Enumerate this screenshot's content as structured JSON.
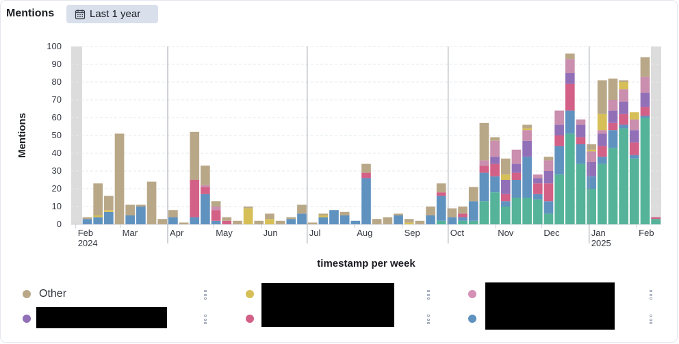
{
  "header": {
    "title": "Mentions",
    "date_range_label": "Last 1 year"
  },
  "legend": {
    "items": [
      {
        "label": "Other",
        "color": "#b9a888"
      },
      {
        "label": "",
        "color": "#d6bf57"
      },
      {
        "label": "",
        "color": "#d590b5"
      },
      {
        "label": "",
        "color": "#9170b8"
      },
      {
        "label": "",
        "color": "#d36086"
      },
      {
        "label": "",
        "color": "#6092c0"
      }
    ]
  },
  "chart_data": {
    "type": "bar",
    "stacked": true,
    "xlabel": "timestamp per week",
    "ylabel": "Mentions",
    "ylim": [
      0,
      100
    ],
    "yticks": [
      0,
      10,
      20,
      30,
      40,
      50,
      60,
      70,
      80,
      90,
      100
    ],
    "grid": true,
    "legend_position": "bottom",
    "x_tick_labels": [
      {
        "label": "Feb",
        "sublabel": "2024"
      },
      {
        "label": "Mar",
        "sublabel": ""
      },
      {
        "label": "Apr",
        "sublabel": ""
      },
      {
        "label": "May",
        "sublabel": ""
      },
      {
        "label": "Jun",
        "sublabel": ""
      },
      {
        "label": "Jul",
        "sublabel": ""
      },
      {
        "label": "Aug",
        "sublabel": ""
      },
      {
        "label": "Sep",
        "sublabel": ""
      },
      {
        "label": "Oct",
        "sublabel": ""
      },
      {
        "label": "Nov",
        "sublabel": ""
      },
      {
        "label": "Dec",
        "sublabel": ""
      },
      {
        "label": "Jan",
        "sublabel": "2025"
      },
      {
        "label": "Feb",
        "sublabel": ""
      }
    ],
    "series_order": [
      "teal",
      "blue",
      "pink",
      "purple",
      "lightpink",
      "yellow",
      "Other"
    ],
    "colors": {
      "teal": "#54b399",
      "blue": "#6092c0",
      "pink": "#d36086",
      "purple": "#9170b8",
      "lightpink": "#ca8eae",
      "yellow": "#d6bf57",
      "Other": "#b9a888"
    },
    "weeks": [
      {
        "week": "2024-02-05",
        "blue": 3,
        "Other": 1
      },
      {
        "week": "2024-02-12",
        "blue": 4,
        "yellow": 1,
        "Other": 18
      },
      {
        "week": "2024-02-19",
        "blue": 7,
        "yellow": 1,
        "Other": 8
      },
      {
        "week": "2024-02-26",
        "Other": 51
      },
      {
        "week": "2024-03-04",
        "blue": 5,
        "Other": 6
      },
      {
        "week": "2024-03-11",
        "blue": 10,
        "Other": 1
      },
      {
        "week": "2024-03-18",
        "Other": 24
      },
      {
        "week": "2024-03-25",
        "Other": 3
      },
      {
        "week": "2024-04-01",
        "blue": 4,
        "Other": 4
      },
      {
        "week": "2024-04-08",
        "Other": 1
      },
      {
        "week": "2024-04-15",
        "blue": 4,
        "pink": 21,
        "Other": 27
      },
      {
        "week": "2024-04-22",
        "blue": 17,
        "pink": 4,
        "lightpink": 1,
        "Other": 11
      },
      {
        "week": "2024-04-29",
        "blue": 2,
        "pink": 6,
        "lightpink": 2,
        "Other": 3
      },
      {
        "week": "2024-05-06",
        "pink": 2,
        "Other": 2
      },
      {
        "week": "2024-05-13",
        "Other": 2
      },
      {
        "week": "2024-05-20",
        "yellow": 9,
        "Other": 1
      },
      {
        "week": "2024-05-27",
        "Other": 2
      },
      {
        "week": "2024-06-03",
        "yellow": 3,
        "Other": 3
      },
      {
        "week": "2024-06-10",
        "Other": 2
      },
      {
        "week": "2024-06-17",
        "blue": 3,
        "Other": 1
      },
      {
        "week": "2024-06-24",
        "blue": 6,
        "Other": 5
      },
      {
        "week": "2024-07-01",
        "Other": 1
      },
      {
        "week": "2024-07-08",
        "blue": 4,
        "yellow": 1,
        "Other": 1
      },
      {
        "week": "2024-07-15",
        "blue": 8
      },
      {
        "week": "2024-07-22",
        "blue": 5,
        "Other": 2
      },
      {
        "week": "2024-07-29",
        "blue": 2
      },
      {
        "week": "2024-08-05",
        "blue": 26,
        "pink": 3,
        "Other": 5
      },
      {
        "week": "2024-08-12",
        "Other": 3
      },
      {
        "week": "2024-08-19",
        "Other": 4
      },
      {
        "week": "2024-08-26",
        "blue": 5,
        "Other": 1
      },
      {
        "week": "2024-09-02",
        "yellow": 1,
        "Other": 2
      },
      {
        "week": "2024-09-09",
        "Other": 2
      },
      {
        "week": "2024-09-16",
        "blue": 5,
        "Other": 5
      },
      {
        "week": "2024-09-23",
        "teal": 2,
        "blue": 14,
        "pink": 2,
        "Other": 5
      },
      {
        "week": "2024-09-30",
        "blue": 4,
        "Other": 5
      },
      {
        "week": "2024-10-07",
        "teal": 2,
        "blue": 2,
        "pink": 2,
        "Other": 4
      },
      {
        "week": "2024-10-14",
        "teal": 2,
        "blue": 11,
        "Other": 8
      },
      {
        "week": "2024-10-21",
        "teal": 13,
        "blue": 16,
        "pink": 4,
        "lightpink": 3,
        "Other": 21
      },
      {
        "week": "2024-10-28",
        "teal": 18,
        "blue": 9,
        "pink": 7,
        "purple": 4,
        "lightpink": 9,
        "Other": 2
      },
      {
        "week": "2024-11-04",
        "teal": 10,
        "blue": 3,
        "pink": 4,
        "purple": 8,
        "yellow": 3,
        "Other": 9
      },
      {
        "week": "2024-11-11",
        "teal": 15,
        "blue": 10,
        "pink": 4,
        "purple": 5,
        "lightpink": 8
      },
      {
        "week": "2024-11-18",
        "teal": 15,
        "blue": 23,
        "purple": 9,
        "lightpink": 6,
        "yellow": 1,
        "Other": 2
      },
      {
        "week": "2024-11-25",
        "teal": 14,
        "blue": 3,
        "pink": 6,
        "purple": 3,
        "lightpink": 2
      },
      {
        "week": "2024-12-02",
        "teal": 6,
        "blue": 7,
        "pink": 10,
        "purple": 7,
        "lightpink": 6,
        "Other": 2
      },
      {
        "week": "2024-12-09",
        "teal": 28,
        "blue": 16,
        "pink": 6,
        "purple": 6,
        "lightpink": 8
      },
      {
        "week": "2024-12-16",
        "teal": 51,
        "blue": 13,
        "pink": 15,
        "purple": 6,
        "lightpink": 8,
        "Other": 3
      },
      {
        "week": "2024-12-23",
        "teal": 34,
        "blue": 11,
        "pink": 4,
        "purple": 7,
        "lightpink": 3
      },
      {
        "week": "2024-12-30",
        "teal": 20,
        "blue": 7,
        "purple": 8,
        "lightpink": 6,
        "yellow": 1,
        "Other": 3
      },
      {
        "week": "2025-01-06",
        "teal": 34,
        "blue": 4,
        "pink": 6,
        "purple": 7,
        "lightpink": 2,
        "yellow": 9,
        "Other": 19
      },
      {
        "week": "2025-01-13",
        "teal": 43,
        "blue": 10,
        "pink": 4,
        "purple": 7,
        "lightpink": 6,
        "Other": 12
      },
      {
        "week": "2025-01-20",
        "teal": 54,
        "blue": 2,
        "pink": 6,
        "purple": 7,
        "lightpink": 7,
        "yellow": 4,
        "Other": 1
      },
      {
        "week": "2025-01-27",
        "teal": 37,
        "blue": 2,
        "pink": 7,
        "purple": 7,
        "lightpink": 6,
        "yellow": 4
      },
      {
        "week": "2025-02-03",
        "teal": 60,
        "blue": 1,
        "pink": 5,
        "purple": 8,
        "lightpink": 9,
        "Other": 11
      },
      {
        "week": "2025-02-10",
        "teal": 3,
        "pink": 1
      }
    ]
  }
}
